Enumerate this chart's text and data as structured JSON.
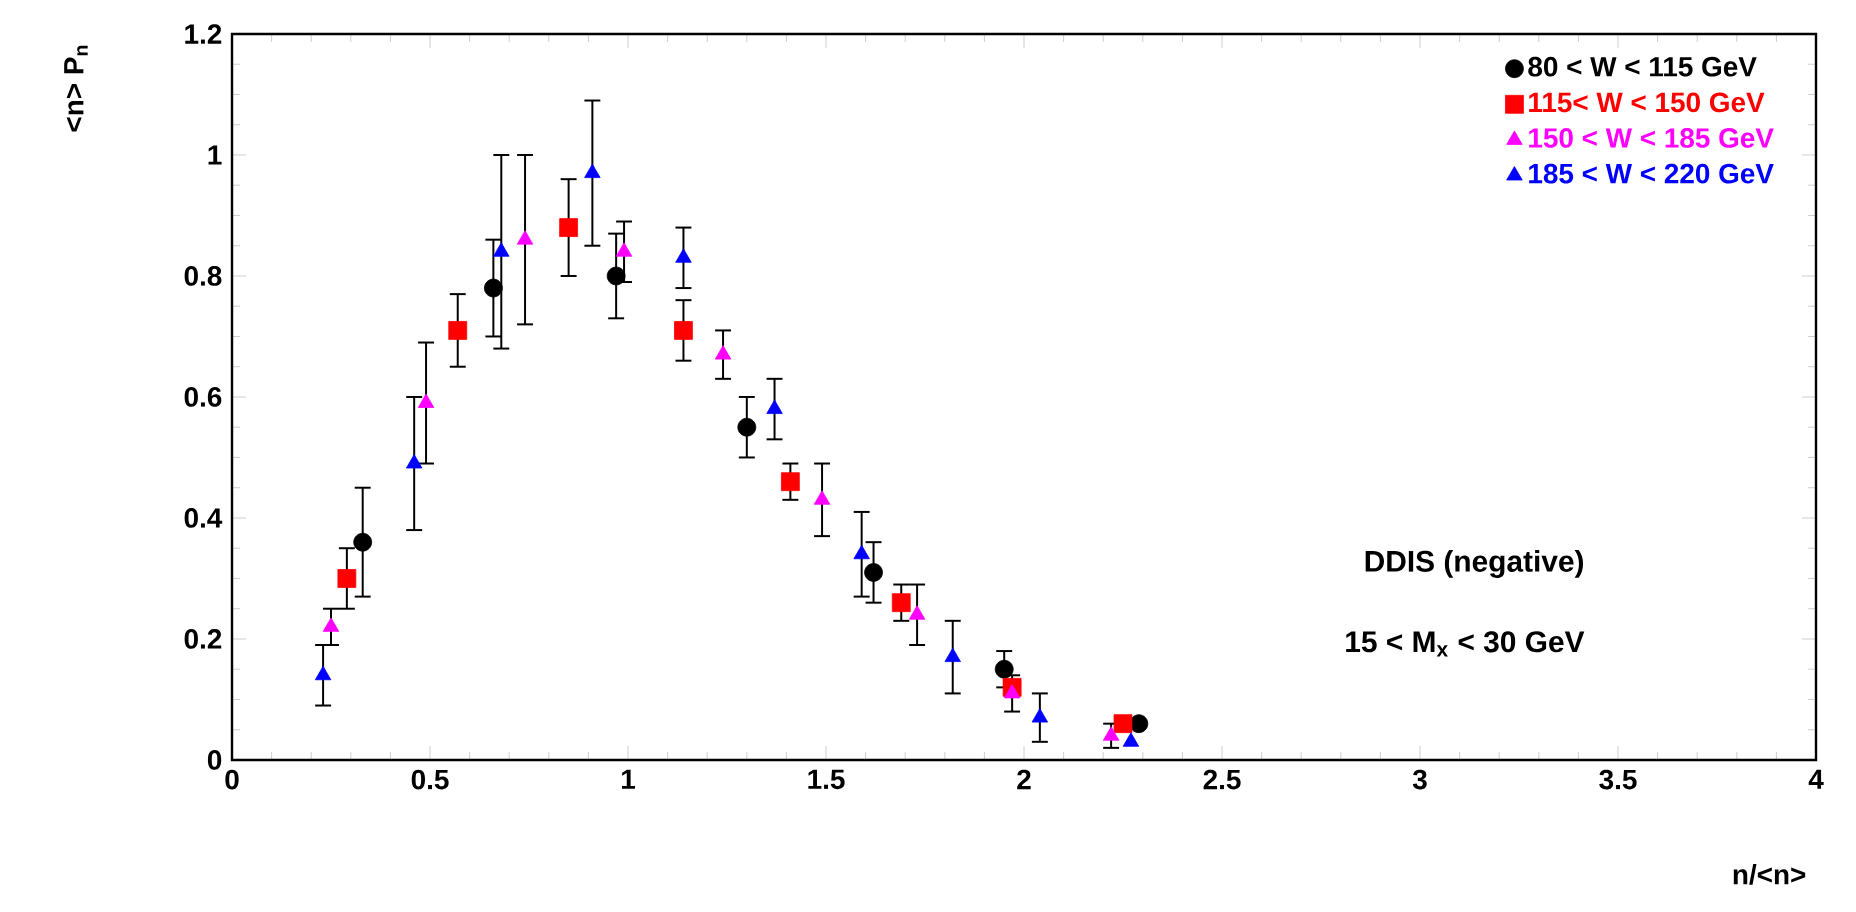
{
  "chart_data": {
    "type": "scatter",
    "xlabel": "n/<n>",
    "ylabel": "<n> P$_{n}$",
    "xlim": [
      0,
      4
    ],
    "ylim": [
      0,
      1.2
    ],
    "xticks": [
      0,
      0.5,
      1,
      1.5,
      2,
      2.5,
      3,
      3.5,
      4
    ],
    "yticks": [
      0,
      0.2,
      0.4,
      0.6,
      0.8,
      1,
      1.2
    ],
    "grid": false,
    "legend": "top right",
    "annotations": [
      "DDIS (negative)",
      "15 < M$_{x}$ < 30 GeV"
    ],
    "series": [
      {
        "name": "80 < W < 115 GeV",
        "color": "#000000",
        "marker": "circle",
        "x": [
          0.33,
          0.66,
          0.97,
          1.3,
          1.62,
          1.95,
          2.29
        ],
        "values": [
          0.36,
          0.78,
          0.8,
          0.55,
          0.31,
          0.15,
          0.06
        ],
        "errors": [
          0.09,
          0.08,
          0.07,
          0.05,
          0.05,
          0.03,
          null
        ]
      },
      {
        "name": "115<  W < 150 GeV",
        "color": "#ff0000",
        "marker": "square",
        "x": [
          0.29,
          0.57,
          0.85,
          1.14,
          1.41,
          1.69,
          1.97,
          2.25
        ],
        "values": [
          0.3,
          0.71,
          0.88,
          0.71,
          0.46,
          0.26,
          0.12,
          0.06
        ],
        "errors": [
          0.05,
          0.06,
          0.08,
          0.05,
          0.03,
          0.03,
          null,
          null
        ]
      },
      {
        "name": "150 < W < 185 GeV",
        "color": "#ff00ff",
        "marker": "triangle",
        "x": [
          0.25,
          0.49,
          0.74,
          0.99,
          1.24,
          1.49,
          1.73,
          1.97,
          2.22
        ],
        "values": [
          0.22,
          0.59,
          0.86,
          0.84,
          0.67,
          0.43,
          0.24,
          0.11,
          0.04
        ],
        "errors": [
          0.03,
          0.1,
          0.14,
          0.05,
          0.04,
          0.06,
          0.05,
          0.03,
          0.02
        ]
      },
      {
        "name": "185 < W < 220 GeV",
        "color": "#0000ff",
        "marker": "triangle",
        "x": [
          0.23,
          0.46,
          0.68,
          0.91,
          1.14,
          1.37,
          1.59,
          1.82,
          2.04,
          2.27
        ],
        "values": [
          0.14,
          0.49,
          0.84,
          0.97,
          0.83,
          0.58,
          0.34,
          0.17,
          0.07,
          0.03
        ],
        "errors": [
          0.05,
          0.11,
          0.16,
          0.12,
          0.05,
          0.05,
          0.07,
          0.06,
          0.04,
          null
        ]
      }
    ]
  }
}
